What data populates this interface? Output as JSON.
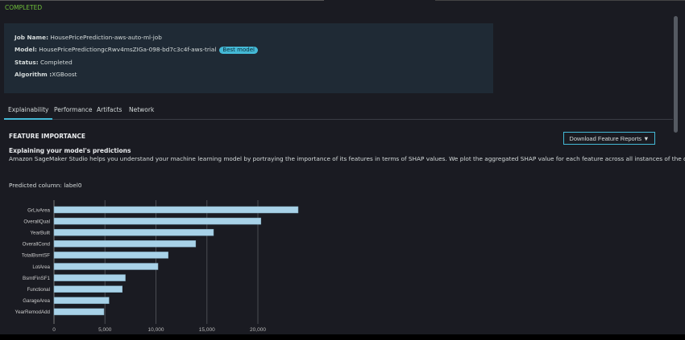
{
  "status_text": "COMPLETED",
  "job": {
    "job_name_label": "Job Name:",
    "job_name": "HousePricePrediction-aws-auto-ml-job",
    "model_label": "Model:",
    "model": "HousePricePredictiongcRwv4msZIGa-098-bd7c3c4f-aws-trial",
    "badge": "Best model",
    "status_label": "Status:",
    "status": "Completed",
    "algorithm_label": "Algorithm :",
    "algorithm": "XGBoost"
  },
  "tabs": [
    {
      "label": "Explainability",
      "active": true
    },
    {
      "label": "Performance"
    },
    {
      "label": "Artifacts"
    },
    {
      "label": "Network"
    }
  ],
  "section": {
    "title": "FEATURE IMPORTANCE",
    "subtitle": "Explaining your model's predictions",
    "description": "Amazon SageMaker Studio helps you understand your machine learning model by portraying the importance of its features in terms of SHAP values. We plot the aggregated SHAP value for each feature across all instances of the dataset.",
    "predicted_column": "Predicted column: label0",
    "download_button": "Download Feature Reports ▼"
  },
  "colors": {
    "accent": "#44b9d6",
    "bar": "#a8d2e8",
    "status": "#6fbf3a"
  },
  "chart_data": {
    "type": "bar",
    "orientation": "horizontal",
    "categories": [
      "GrLivArea",
      "OverallQual",
      "YearBuilt",
      "OverallCond",
      "TotalBsmtSF",
      "LotArea",
      "BsmtFinSF1",
      "Functional",
      "GarageArea",
      "YearRemodAdd"
    ],
    "values": [
      23950,
      20300,
      15650,
      13900,
      11200,
      10200,
      7000,
      6700,
      5400,
      4900
    ],
    "xlim": [
      0,
      24000
    ],
    "xticks": [
      0,
      5000,
      10000,
      15000,
      20000
    ],
    "xtick_labels": [
      "0",
      "5,000",
      "10,000",
      "15,000",
      "20,000"
    ],
    "grid": true
  }
}
